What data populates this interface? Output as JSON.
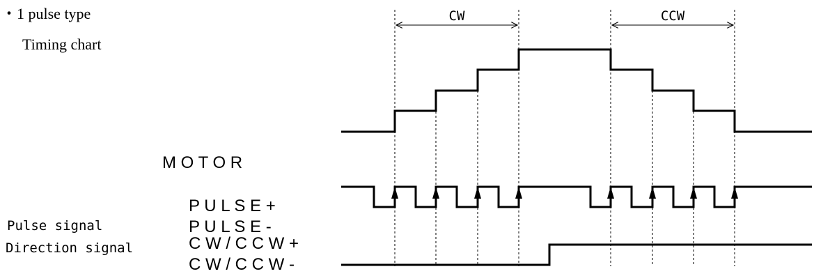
{
  "heading": {
    "bullet_line": "・1 pulse type",
    "subtitle": "Timing chart"
  },
  "timing": {
    "span_cw": "CW",
    "span_ccw": "CCW"
  },
  "signals": {
    "motor": "M O T O R",
    "pulse_name": "Pulse signal",
    "pulse_plus": "P U L S E +",
    "pulse_minus": "P U L S E -",
    "direction_name": "Direction signal",
    "dir_plus": "C W / C C W +",
    "dir_minus": "C W / C C W -"
  },
  "colors": {
    "line": "#000000",
    "background": "#ffffff"
  }
}
